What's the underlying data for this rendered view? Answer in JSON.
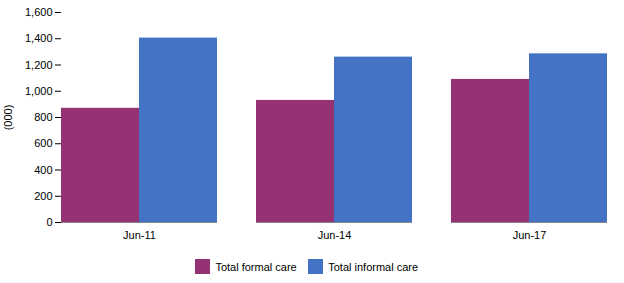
{
  "chart_data": {
    "type": "bar",
    "categories": [
      "Jun-11",
      "Jun-14",
      "Jun-17"
    ],
    "series": [
      {
        "name": "Total formal care",
        "color": "#943274",
        "values": [
          870,
          930,
          1090
        ]
      },
      {
        "name": "Total informal care",
        "color": "#4472C4",
        "values": [
          1405,
          1260,
          1285
        ]
      }
    ],
    "ylabel": "(000)",
    "ylim": [
      0,
      1600
    ],
    "yticks": [
      0,
      200,
      400,
      600,
      800,
      {
        "value": 1000,
        "label": "1,000"
      },
      {
        "value": 1200,
        "label": "1,200"
      },
      {
        "value": 1400,
        "label": "1,400"
      },
      {
        "value": 1600,
        "label": "1,600"
      }
    ],
    "grid": false,
    "legend": "bottom"
  }
}
